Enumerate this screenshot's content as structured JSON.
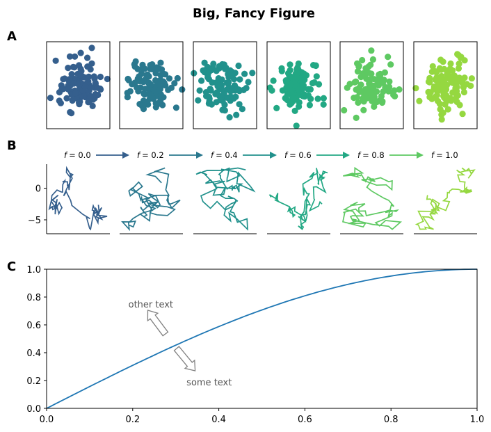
{
  "figure": {
    "title": "Big, Fancy Figure",
    "panel_labels": [
      "A",
      "B",
      "C"
    ]
  },
  "colors": {
    "palette": [
      "#355f8d",
      "#2a788e",
      "#21918c",
      "#22a884",
      "#5ec962",
      "#95d840"
    ],
    "line_c": "#1f77b4",
    "arrow_gray": "#808080",
    "annotation_text": "#555555"
  },
  "chart_data": [
    {
      "type": "scatter",
      "panel": "A",
      "description_of_series": "six panels of random normal scatter",
      "n_points_per_panel": 100,
      "series": [
        {
          "values": [],
          "color": "#355f8d"
        },
        {
          "values": [],
          "color": "#2a788e"
        },
        {
          "values": [],
          "color": "#21918c"
        },
        {
          "values": [],
          "color": "#22a884"
        },
        {
          "values": [],
          "color": "#5ec962"
        },
        {
          "values": [],
          "color": "#95d840"
        }
      ],
      "axes_visible": false
    },
    {
      "type": "line",
      "panel": "B",
      "panel_titles": [
        "f = 0.0",
        "f = 0.2",
        "f = 0.4",
        "f = 0.6",
        "f = 0.8",
        "f = 1.0"
      ],
      "y_ticks": [
        "0",
        "−5"
      ],
      "ylim": [
        -7.2,
        3.8
      ],
      "shared_y": true
    },
    {
      "type": "line",
      "panel": "C",
      "series": [
        {
          "name": "",
          "function": "sin(pi*x/2)"
        }
      ],
      "x_ticks": [
        "0.0",
        "0.2",
        "0.4",
        "0.6",
        "0.8",
        "1.0"
      ],
      "y_ticks": [
        "0.0",
        "0.2",
        "0.4",
        "0.6",
        "0.8",
        "1.0"
      ],
      "xlim": [
        0,
        1
      ],
      "ylim": [
        0,
        1
      ],
      "annotations": [
        {
          "text": "other text",
          "x": 0.19,
          "y": 0.75
        },
        {
          "text": "some text",
          "x": 0.325,
          "y": 0.19
        }
      ]
    }
  ],
  "labels": {
    "f_prefix": "f",
    "f_values": [
      "= 0.0",
      "= 0.2",
      "= 0.4",
      "= 0.6",
      "= 0.8",
      "= 1.0"
    ]
  }
}
